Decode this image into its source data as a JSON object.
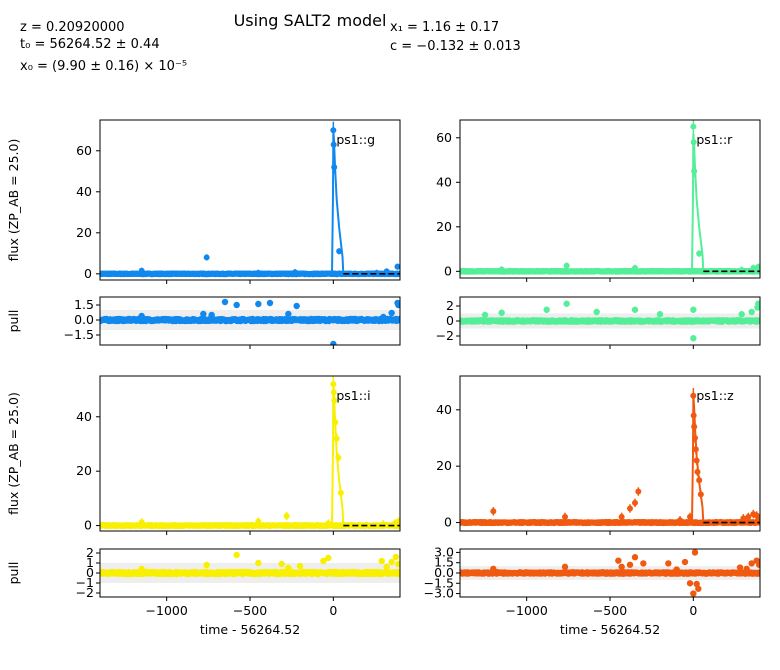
{
  "header": {
    "title": "Using SALT2 model",
    "params_left": [
      "z = 0.20920000",
      "t₀ = 56264.52 ± 0.44",
      "x₀ = (9.90 ± 0.16) × 10⁻⁵"
    ],
    "params_right": [
      "x₁ = 1.16 ± 0.17",
      "c = −0.132 ± 0.013"
    ]
  },
  "chart_data": [
    {
      "type": "scatter",
      "band": "ps1::g",
      "color": "#1188ee",
      "xlabel": "",
      "ylabel": "flux (ZP_AB = 25.0)",
      "xlim": [
        -1400,
        400
      ],
      "ylim": [
        -3,
        75
      ],
      "y_ticks": [
        0,
        20,
        40,
        60
      ],
      "model_peak": 70,
      "points_peak": [
        [
          0,
          70
        ],
        [
          2,
          63
        ],
        [
          5,
          52
        ],
        [
          35,
          11
        ],
        [
          -760,
          8
        ],
        [
          -230,
          0.8
        ],
        [
          -450,
          0.5
        ],
        [
          -1150,
          1.5
        ],
        [
          260,
          0.5
        ],
        [
          320,
          1.2
        ],
        [
          385,
          3.5
        ]
      ],
      "pull": {
        "ylabel": "pull",
        "ylim": [
          -2.5,
          2.3
        ],
        "y_ticks": [
          -1.5,
          0.0,
          1.5
        ],
        "y_tick_labels": [
          "−1.5",
          "0.0",
          "1.5"
        ],
        "outliers": [
          [
            -1150,
            0.4
          ],
          [
            -780,
            0.6
          ],
          [
            -730,
            0.5
          ],
          [
            -650,
            1.8
          ],
          [
            -580,
            1.5
          ],
          [
            -450,
            1.6
          ],
          [
            -380,
            1.7
          ],
          [
            -270,
            0.6
          ],
          [
            -220,
            1.4
          ],
          [
            0,
            -2.4
          ],
          [
            300,
            0.3
          ],
          [
            350,
            0.7
          ],
          [
            385,
            1.7
          ],
          [
            390,
            1.5
          ]
        ]
      }
    },
    {
      "type": "scatter",
      "band": "ps1::r",
      "color": "#55ee99",
      "xlabel": "",
      "ylabel": "",
      "xlim": [
        -1400,
        400
      ],
      "ylim": [
        -3,
        68
      ],
      "y_ticks": [
        0,
        20,
        40,
        60
      ],
      "model_peak": 62,
      "points_peak": [
        [
          0,
          65
        ],
        [
          2,
          58
        ],
        [
          5,
          45
        ],
        [
          35,
          8
        ],
        [
          -1150,
          0.8
        ],
        [
          -760,
          2.5
        ],
        [
          -350,
          1.5
        ],
        [
          290,
          0.6
        ],
        [
          360,
          1.5
        ],
        [
          390,
          2
        ]
      ],
      "pull": {
        "ylabel": "",
        "ylim": [
          -3.2,
          3.2
        ],
        "y_ticks": [
          -2,
          0,
          2
        ],
        "y_tick_labels": [
          "−2",
          "0",
          "2"
        ],
        "outliers": [
          [
            -1250,
            0.8
          ],
          [
            -1150,
            1.1
          ],
          [
            -880,
            1.5
          ],
          [
            -760,
            2.3
          ],
          [
            -580,
            1.2
          ],
          [
            -350,
            1.5
          ],
          [
            -200,
            0.9
          ],
          [
            0,
            -2.3
          ],
          [
            0,
            1.5
          ],
          [
            290,
            0.9
          ],
          [
            350,
            1.2
          ],
          [
            385,
            1.8
          ],
          [
            390,
            2.3
          ]
        ]
      }
    },
    {
      "type": "scatter",
      "band": "ps1::i",
      "color": "#f8f000",
      "xlabel": "time - 56264.52",
      "ylabel": "flux (ZP_AB = 25.0)",
      "xlim": [
        -1400,
        400
      ],
      "ylim": [
        -2,
        55
      ],
      "y_ticks": [
        0,
        20,
        40
      ],
      "x_ticks": [
        -1000,
        -500,
        0
      ],
      "x_tick_labels": [
        "−1000",
        "−500",
        "0"
      ],
      "model_peak": 52,
      "points_peak": [
        [
          0,
          52
        ],
        [
          3,
          49
        ],
        [
          6,
          46
        ],
        [
          12,
          38
        ],
        [
          20,
          32
        ],
        [
          30,
          25
        ],
        [
          45,
          12
        ],
        [
          -1150,
          1.2
        ],
        [
          -450,
          1.5
        ],
        [
          -280,
          3.5
        ],
        [
          -30,
          0.8
        ],
        [
          300,
          0.5
        ],
        [
          370,
          0.8
        ],
        [
          390,
          1.5
        ]
      ],
      "pull": {
        "ylabel": "pull",
        "ylim": [
          -2.4,
          2.4
        ],
        "y_ticks": [
          -2,
          -1,
          0,
          1,
          2
        ],
        "y_tick_labels": [
          "−2",
          "−1",
          "0",
          "1",
          "2"
        ],
        "outliers": [
          [
            -1150,
            0.4
          ],
          [
            -760,
            0.8
          ],
          [
            -580,
            1.8
          ],
          [
            -450,
            1.0
          ],
          [
            -310,
            0.9
          ],
          [
            -270,
            0.5
          ],
          [
            -200,
            0.7
          ],
          [
            -60,
            1.2
          ],
          [
            -30,
            1.5
          ],
          [
            290,
            1.2
          ],
          [
            320,
            0.6
          ],
          [
            350,
            1.1
          ],
          [
            375,
            1.6
          ],
          [
            390,
            0.9
          ]
        ]
      }
    },
    {
      "type": "scatter",
      "band": "ps1::z",
      "color": "#f05a10",
      "xlabel": "time - 56264.52",
      "ylabel": "",
      "xlim": [
        -1400,
        400
      ],
      "ylim": [
        -3,
        52
      ],
      "y_ticks": [
        0,
        20,
        40
      ],
      "x_ticks": [
        -1000,
        -500,
        0
      ],
      "x_tick_labels": [
        "−1000",
        "−500",
        "0"
      ],
      "model_peak": 45,
      "points_peak": [
        [
          0,
          45
        ],
        [
          2,
          38
        ],
        [
          5,
          34
        ],
        [
          10,
          30
        ],
        [
          15,
          26
        ],
        [
          20,
          22
        ],
        [
          25,
          18
        ],
        [
          35,
          15
        ],
        [
          45,
          10
        ],
        [
          -1200,
          4
        ],
        [
          -770,
          2
        ],
        [
          -430,
          2
        ],
        [
          -380,
          5
        ],
        [
          -350,
          7
        ],
        [
          -330,
          11
        ],
        [
          -80,
          0.8
        ],
        [
          -20,
          2
        ],
        [
          300,
          1.5
        ],
        [
          330,
          2
        ],
        [
          360,
          3
        ],
        [
          380,
          2.5
        ],
        [
          390,
          1.5
        ]
      ],
      "pull": {
        "ylabel": "",
        "ylim": [
          -3.5,
          3.5
        ],
        "y_ticks": [
          -3.0,
          -1.5,
          0.0,
          1.5,
          3.0
        ],
        "y_tick_labels": [
          "−3.0",
          "−1.5",
          "0.0",
          "1.5",
          "3.0"
        ],
        "outliers": [
          [
            -1200,
            0.6
          ],
          [
            -770,
            0.9
          ],
          [
            -450,
            1.8
          ],
          [
            -430,
            0.9
          ],
          [
            -380,
            1.2
          ],
          [
            -350,
            2.3
          ],
          [
            -300,
            1.4
          ],
          [
            -150,
            1.4
          ],
          [
            -100,
            0.5
          ],
          [
            -50,
            1.6
          ],
          [
            -20,
            -1.5
          ],
          [
            0,
            -3.0
          ],
          [
            10,
            3.0
          ],
          [
            20,
            -1.6
          ],
          [
            30,
            -2.3
          ],
          [
            280,
            0.8
          ],
          [
            320,
            0.6
          ],
          [
            350,
            1.4
          ],
          [
            380,
            1.8
          ],
          [
            395,
            1.2
          ]
        ]
      }
    }
  ]
}
